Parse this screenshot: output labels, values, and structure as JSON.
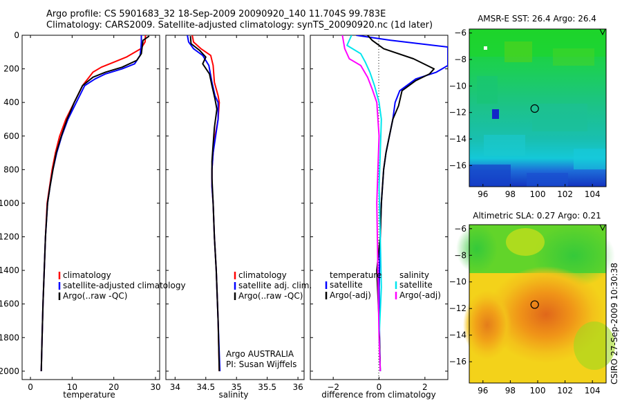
{
  "header": {
    "line1": "Argo profile: CS 5901683_32 18-Sep-2009 20090920_140 11.704S 99.783E",
    "line2": "Climatology: CARS2009. Satellite-adjusted climatology: synTS_20090920.nc (1d later)"
  },
  "footer": {
    "credit": "CSIRO 27-Sep-2009 10:30:38"
  },
  "colors": {
    "climatology": "#ff0000",
    "satellite": "#0000ff",
    "argo": "#000000",
    "satellite_sal": "#00e5ee",
    "argo_sal": "#ff00ff"
  },
  "chart_data": [
    {
      "type": "line",
      "xlabel": "temperature",
      "ylabel": "",
      "xlim": [
        -2,
        31
      ],
      "ylim": [
        2050,
        0
      ],
      "xticks": [
        0,
        10,
        20,
        30
      ],
      "yticks": [
        0,
        200,
        400,
        600,
        800,
        1000,
        1200,
        1400,
        1600,
        1800,
        2000
      ],
      "legend": {
        "placement": "lower-right",
        "entries": [
          "climatology",
          "satellite-adjusted climatology",
          "Argo(..raw -QC)"
        ]
      },
      "series": [
        {
          "name": "climatology",
          "color": "#ff0000",
          "x": [
            27.6,
            27.5,
            26.5,
            23,
            20,
            17,
            15,
            12.5,
            10.5,
            8.5,
            7,
            6,
            5.2,
            4.6,
            4,
            3.6,
            3.3,
            3,
            2.8,
            2.6
          ],
          "y": [
            0,
            40,
            80,
            130,
            160,
            190,
            220,
            300,
            400,
            500,
            600,
            700,
            800,
            900,
            1000,
            1200,
            1400,
            1600,
            1800,
            2000
          ]
        },
        {
          "name": "satellite-adjusted climatology",
          "color": "#0000ff",
          "x": [
            26.6,
            26.6,
            26.5,
            26.3,
            25,
            22,
            18,
            15.5,
            13,
            11,
            9,
            7.5,
            6.3,
            5.4,
            4.7,
            4.1,
            3.6,
            3.3,
            3,
            2.8,
            2.6
          ],
          "y": [
            0,
            40,
            80,
            120,
            170,
            200,
            230,
            260,
            300,
            400,
            500,
            600,
            700,
            800,
            900,
            1000,
            1200,
            1400,
            1600,
            1800,
            2000
          ]
        },
        {
          "name": "Argo(..raw -QC)",
          "color": "#000000",
          "x": [
            28.5,
            27,
            26.8,
            26.6,
            25.5,
            22,
            18,
            15,
            12.5,
            10.5,
            8.8,
            7.4,
            6.2,
            5.4,
            4.7,
            4.1,
            3.6,
            3.3,
            3,
            2.8,
            2.6
          ],
          "y": [
            5,
            30,
            70,
            110,
            150,
            190,
            220,
            250,
            300,
            400,
            500,
            600,
            700,
            800,
            900,
            1000,
            1200,
            1400,
            1600,
            1800,
            2000
          ]
        }
      ]
    },
    {
      "type": "line",
      "xlabel": "salinity",
      "ylabel": "",
      "xlim": [
        33.85,
        36.1
      ],
      "ylim": [
        2050,
        0
      ],
      "xticks": [
        34,
        34.5,
        35,
        35.5,
        36
      ],
      "xtick_labels": [
        "34",
        "34.5",
        "35",
        "35.5",
        "36"
      ],
      "yticks": [
        0,
        200,
        400,
        600,
        800,
        1000,
        1200,
        1400,
        1600,
        1800,
        2000
      ],
      "legend": {
        "placement": "lower-right",
        "entries": [
          "climatology",
          "satellite adj. clim.",
          "Argo(..raw -QC)"
        ]
      },
      "annotation": [
        "Argo AUSTRALIA",
        "PI: Susan Wijffels"
      ],
      "series": [
        {
          "name": "climatology",
          "color": "#ff0000",
          "x": [
            34.28,
            34.3,
            34.42,
            34.58,
            34.62,
            34.64,
            34.7,
            34.72,
            34.7,
            34.65,
            34.62,
            34.6,
            34.6,
            34.62,
            34.64,
            34.67,
            34.7,
            34.72
          ],
          "y": [
            0,
            40,
            80,
            120,
            180,
            280,
            360,
            400,
            500,
            600,
            700,
            800,
            900,
            1000,
            1200,
            1400,
            1700,
            2000
          ]
        },
        {
          "name": "satellite adj. clim.",
          "color": "#0000ff",
          "x": [
            34.2,
            34.22,
            34.3,
            34.45,
            34.55,
            34.6,
            34.65,
            34.7,
            34.7,
            34.66,
            34.62,
            34.6,
            34.6,
            34.62,
            34.64,
            34.67,
            34.7,
            34.73
          ],
          "y": [
            0,
            40,
            80,
            120,
            180,
            280,
            360,
            400,
            500,
            600,
            700,
            800,
            900,
            1000,
            1200,
            1400,
            1700,
            2000
          ]
        },
        {
          "name": "Argo(..raw -QC)",
          "color": "#000000",
          "x": [
            34.25,
            34.26,
            34.4,
            34.5,
            34.45,
            34.56,
            34.6,
            34.65,
            34.68,
            34.64,
            34.62,
            34.6,
            34.6,
            34.62,
            34.64,
            34.67,
            34.7,
            34.72
          ],
          "y": [
            5,
            50,
            90,
            130,
            170,
            230,
            300,
            380,
            440,
            550,
            650,
            750,
            850,
            1000,
            1200,
            1400,
            1700,
            2000
          ]
        }
      ]
    },
    {
      "type": "line",
      "xlabel": "difference from climatology",
      "ylabel": "",
      "xlim": [
        -3,
        3
      ],
      "ylim": [
        2050,
        0
      ],
      "xticks": [
        -2,
        0,
        2
      ],
      "yticks": [
        0,
        200,
        400,
        600,
        800,
        1000,
        1200,
        1400,
        1600,
        1800,
        2000
      ],
      "legend": {
        "placement": "lower-center",
        "entries": [
          "temperature",
          "satellite",
          "Argo(-adj)",
          "salinity",
          "satellite",
          "Argo(-adj)"
        ]
      },
      "series": [
        {
          "name": "satellite",
          "color": "#0000ff",
          "x": [
            -1,
            0.5,
            3,
            3,
            2.5,
            1.6,
            0.9,
            0.7,
            0.6,
            0.45,
            0.3,
            0.2,
            0.1,
            0.05,
            0,
            0.02,
            0.05
          ],
          "y": [
            0,
            30,
            70,
            180,
            220,
            260,
            330,
            400,
            500,
            600,
            700,
            800,
            1000,
            1200,
            1500,
            1800,
            2000
          ]
        },
        {
          "name": "Argo(-adj)",
          "color": "#000000",
          "x": [
            -0.5,
            -0.3,
            0.2,
            1.5,
            2.4,
            2.2,
            1.6,
            1.0,
            0.85,
            0.6,
            0.45,
            0.3,
            0.2,
            0.1,
            0.05,
            -0.1,
            0,
            0.05
          ],
          "y": [
            0,
            30,
            80,
            140,
            200,
            230,
            270,
            330,
            420,
            500,
            600,
            700,
            800,
            1000,
            1200,
            1400,
            1700,
            2000
          ]
        },
        {
          "name": "satellite",
          "color": "#00e5ee",
          "x": [
            -1.2,
            -1.4,
            -0.8,
            -0.6,
            -0.4,
            -0.2,
            0,
            0.1,
            0.05,
            0,
            0.05,
            0.1,
            0,
            0.05
          ],
          "y": [
            0,
            60,
            110,
            160,
            220,
            300,
            400,
            500,
            700,
            900,
            1200,
            1500,
            1800,
            2000
          ]
        },
        {
          "name": "Argo(-adj)",
          "color": "#ff00ff",
          "x": [
            -1.6,
            -1.5,
            -1.3,
            -0.8,
            -0.5,
            -0.3,
            -0.1,
            0,
            -0.05,
            -0.1,
            -0.05,
            0,
            0.05
          ],
          "y": [
            0,
            80,
            140,
            180,
            250,
            320,
            400,
            600,
            800,
            1000,
            1400,
            1800,
            2000
          ]
        }
      ]
    },
    {
      "type": "heatmap",
      "title": "AMSR-E SST: 26.4 Argo: 26.4",
      "xlim": [
        95,
        105
      ],
      "ylim": [
        -17.6,
        -5.7
      ],
      "xticks": [
        96,
        98,
        100,
        102,
        104
      ],
      "yticks": [
        -6,
        -8,
        -10,
        -12,
        -14,
        -16
      ],
      "marker": {
        "x": 99.783,
        "y": -11.704
      },
      "colormap": "jet"
    },
    {
      "type": "heatmap",
      "title": "Altimetric SLA: 0.27 Argo: 0.21",
      "xlim": [
        95,
        105
      ],
      "ylim": [
        -17.6,
        -5.7
      ],
      "xticks": [
        96,
        98,
        100,
        102,
        104
      ],
      "yticks": [
        -6,
        -8,
        -10,
        -12,
        -14,
        -16
      ],
      "marker": {
        "x": 99.783,
        "y": -11.704
      },
      "colormap": "jet"
    }
  ]
}
